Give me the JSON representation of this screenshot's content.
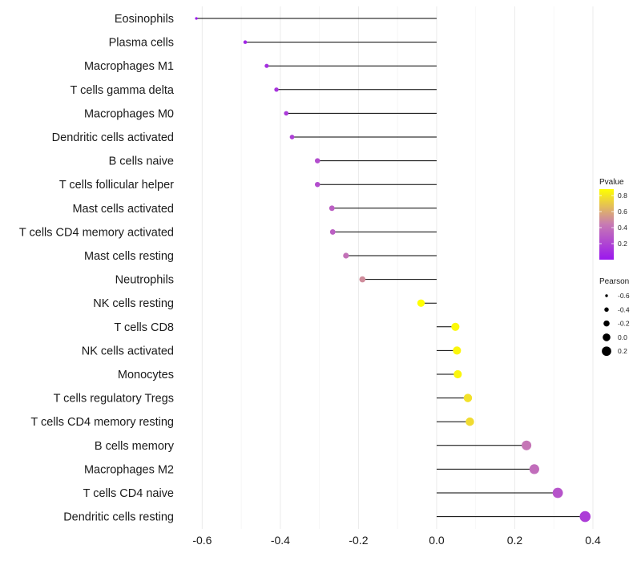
{
  "chart_data": {
    "type": "lollipop",
    "title": "",
    "xlabel": "",
    "ylabel": "",
    "xlim": [
      -0.65,
      0.4
    ],
    "x_ticks": [
      -0.6,
      -0.4,
      -0.2,
      0.0,
      0.2,
      0.4
    ],
    "x_tick_labels": [
      "-0.6",
      "-0.4",
      "-0.2",
      "0.0",
      "0.2",
      "0.4"
    ],
    "grid": true,
    "baseline": 0,
    "points": [
      {
        "cell": "Eosinophils",
        "pearson": -0.615,
        "pvalue": 0.01
      },
      {
        "cell": "Plasma cells",
        "pearson": -0.49,
        "pvalue": 0.06
      },
      {
        "cell": "Macrophages M1",
        "pearson": -0.435,
        "pvalue": 0.1
      },
      {
        "cell": "T cells gamma delta",
        "pearson": -0.41,
        "pvalue": 0.13
      },
      {
        "cell": "Macrophages M0",
        "pearson": -0.385,
        "pvalue": 0.16
      },
      {
        "cell": "Dendritic cells activated",
        "pearson": -0.37,
        "pvalue": 0.18
      },
      {
        "cell": "B cells naive",
        "pearson": -0.305,
        "pvalue": 0.24
      },
      {
        "cell": "T cells follicular helper",
        "pearson": -0.305,
        "pvalue": 0.24
      },
      {
        "cell": "Mast cells activated",
        "pearson": -0.268,
        "pvalue": 0.32
      },
      {
        "cell": "T cells CD4 memory activated",
        "pearson": -0.266,
        "pvalue": 0.32
      },
      {
        "cell": "Mast cells resting",
        "pearson": -0.232,
        "pvalue": 0.4
      },
      {
        "cell": "Neutrophils",
        "pearson": -0.19,
        "pvalue": 0.5
      },
      {
        "cell": "NK cells resting",
        "pearson": -0.04,
        "pvalue": 0.88
      },
      {
        "cell": "T cells CD8",
        "pearson": 0.048,
        "pvalue": 0.86
      },
      {
        "cell": "NK cells activated",
        "pearson": 0.052,
        "pvalue": 0.85
      },
      {
        "cell": "Monocytes",
        "pearson": 0.054,
        "pvalue": 0.85
      },
      {
        "cell": "T cells regulatory  Tregs ",
        "pearson": 0.08,
        "pvalue": 0.78
      },
      {
        "cell": "T cells CD4 memory resting",
        "pearson": 0.085,
        "pvalue": 0.76
      },
      {
        "cell": "B cells memory",
        "pearson": 0.23,
        "pvalue": 0.42
      },
      {
        "cell": "Macrophages M2",
        "pearson": 0.25,
        "pvalue": 0.38
      },
      {
        "cell": "T cells CD4 naive",
        "pearson": 0.31,
        "pvalue": 0.27
      },
      {
        "cell": "Dendritic cells resting",
        "pearson": 0.38,
        "pvalue": 0.17
      }
    ],
    "legend": {
      "pvalue": {
        "title": "Pvalue",
        "ticks": [
          0.2,
          0.4,
          0.6,
          0.8
        ],
        "tick_labels": [
          "0.2",
          "0.4",
          "0.6",
          "0.8"
        ],
        "range": [
          0.0,
          0.88
        ],
        "colors": {
          "low": "#9b17ee",
          "mid": "#c77ab3",
          "high": "#ffff00"
        }
      },
      "pearson": {
        "title": "Pearson",
        "values": [
          -0.6,
          -0.4,
          -0.2,
          0.0,
          0.2
        ],
        "labels": [
          "-0.6",
          "-0.4",
          "-0.2",
          "0.0",
          "0.2"
        ]
      }
    }
  }
}
